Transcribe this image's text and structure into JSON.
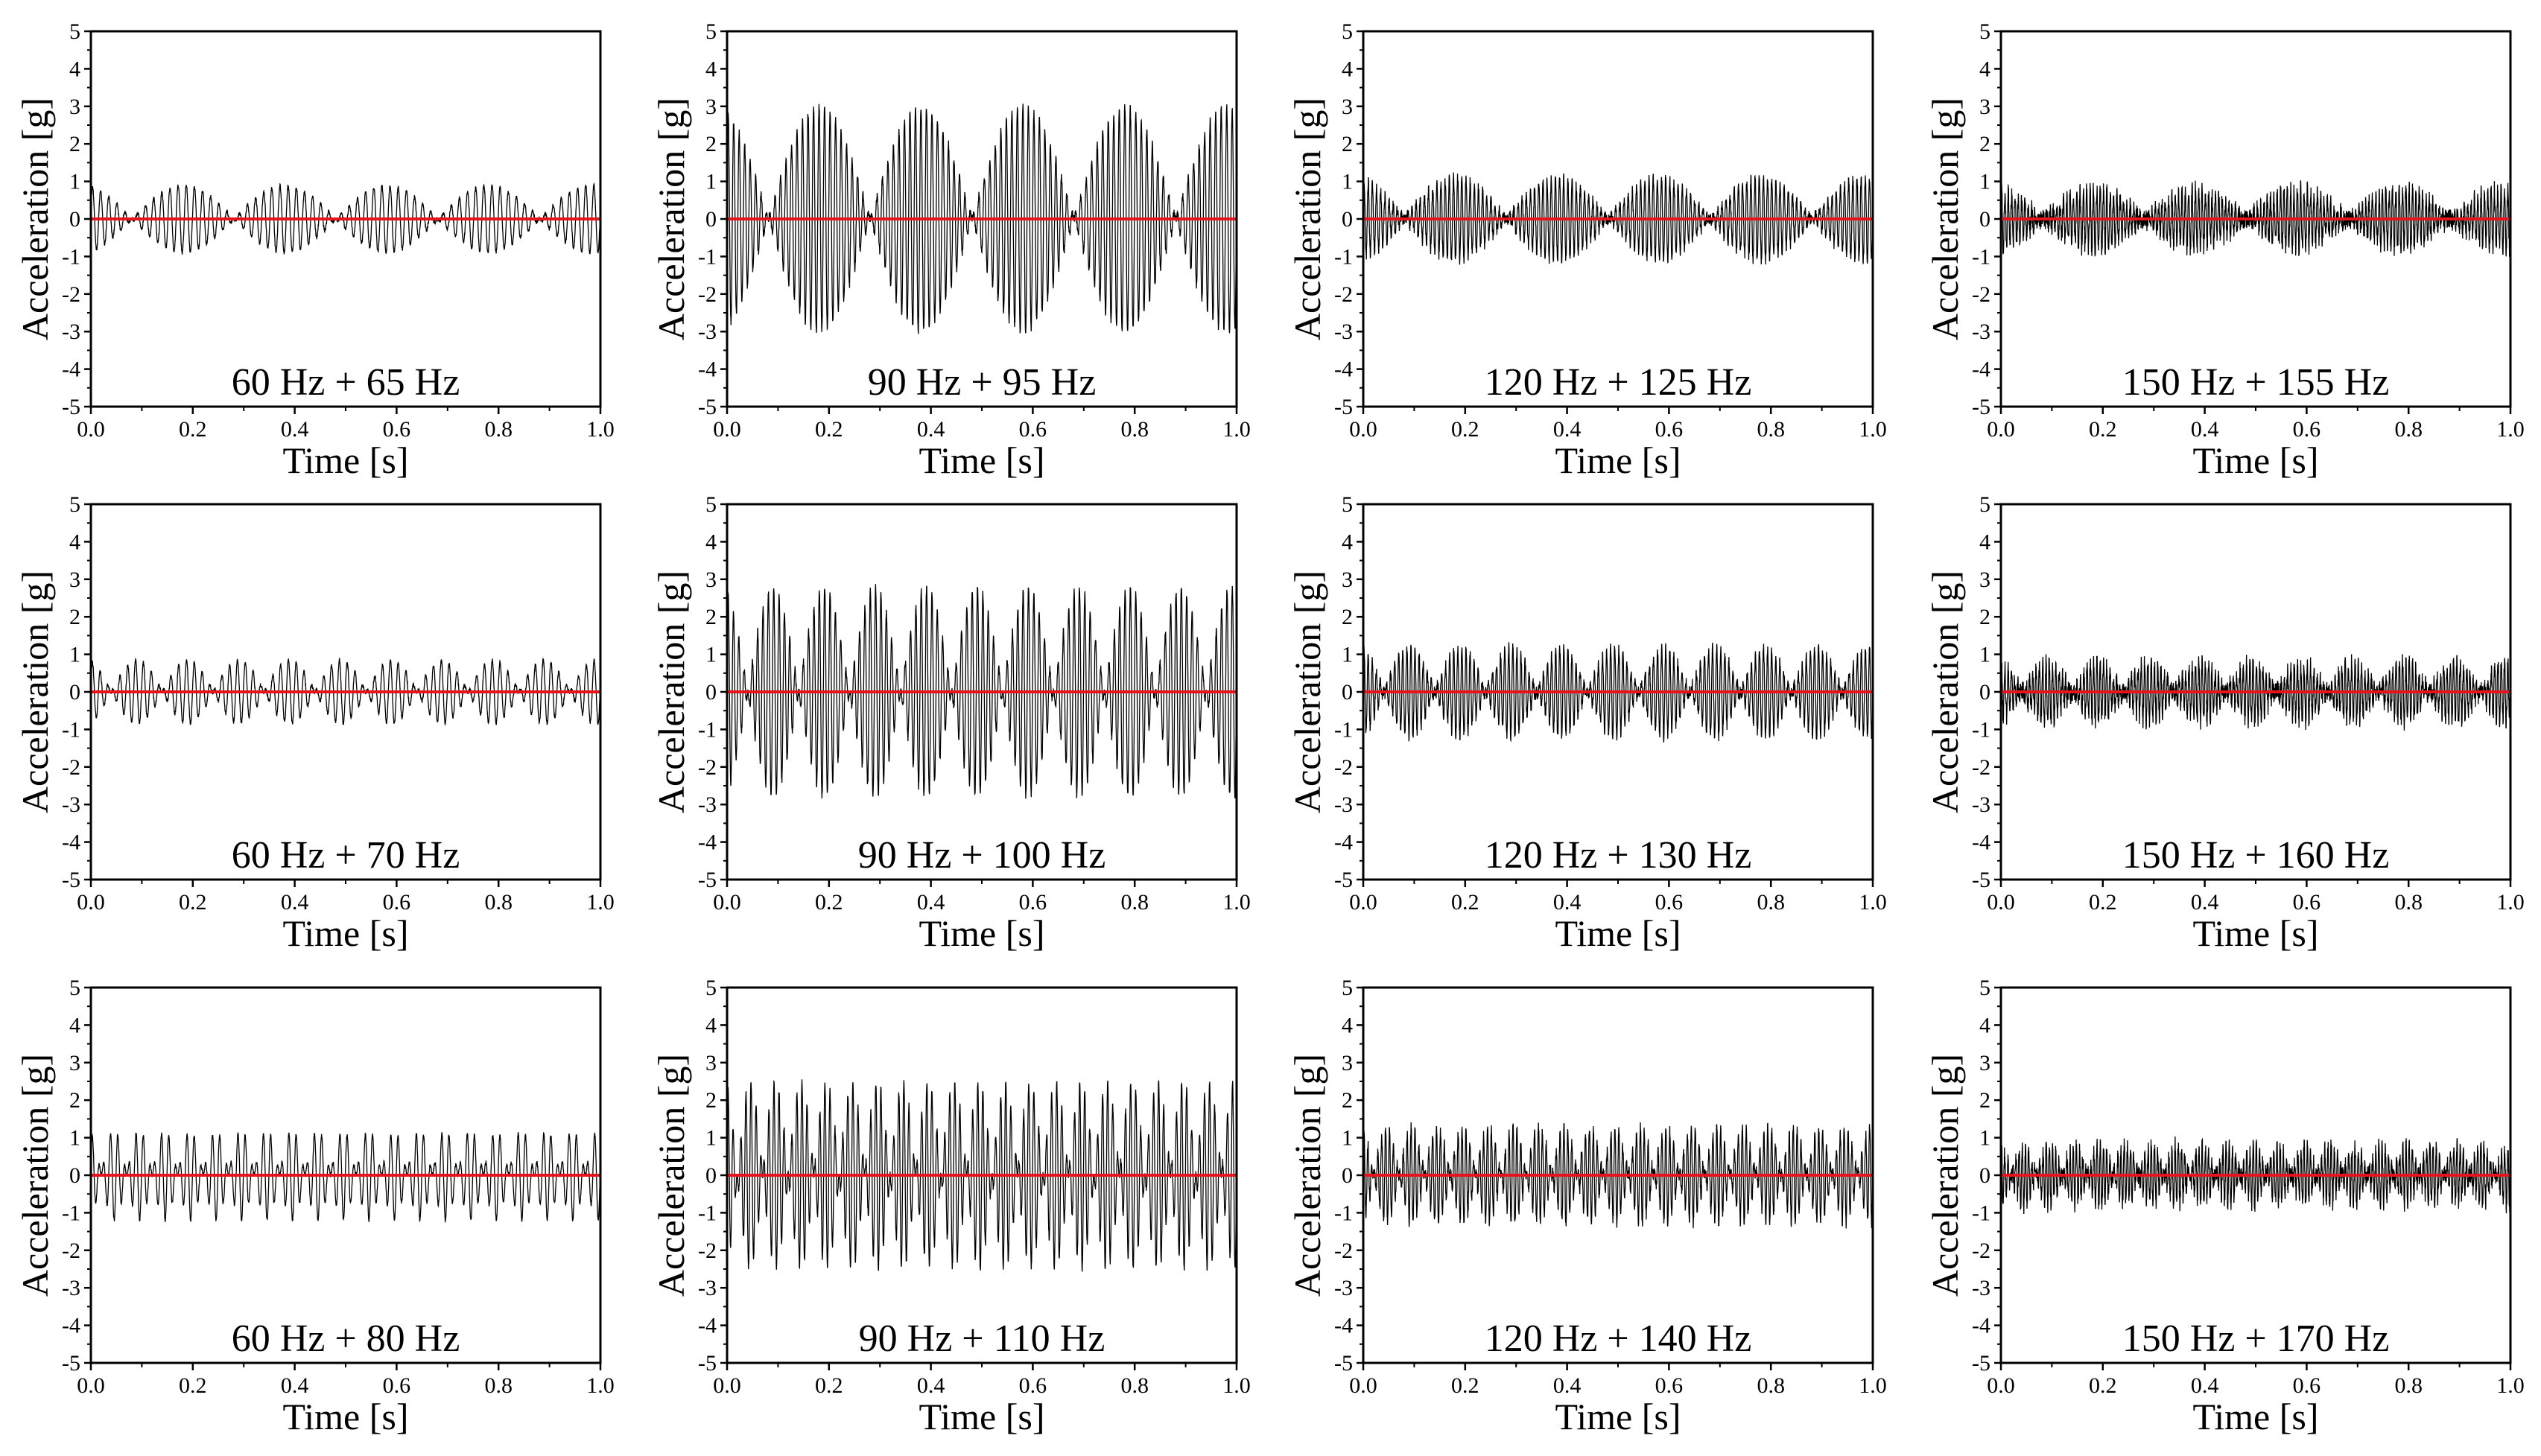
{
  "figure": {
    "xlabel": "Time [s]",
    "ylabel": "Acceleration [g]",
    "signal_color": "#000000",
    "zero_line_color": "#e8141b"
  },
  "chart_data": [
    {
      "type": "line",
      "annotation": "60 Hz + 65 Hz",
      "f1": 60,
      "f2": 65,
      "peak": 0.9,
      "noise": 0.05,
      "xlim": [
        0,
        1
      ],
      "ylim": [
        -5,
        5
      ],
      "xticks": [
        "0.0",
        "0.2",
        "0.4",
        "0.6",
        "0.8",
        "1.0"
      ],
      "yticks": [
        "5",
        "4",
        "3",
        "2",
        "1",
        "0",
        "-1",
        "-2",
        "-3",
        "-4",
        "-5"
      ],
      "xlabel": "Time [s]",
      "ylabel": "Acceleration [g]",
      "zero_line": 0
    },
    {
      "type": "line",
      "annotation": "90 Hz + 95 Hz",
      "f1": 90,
      "f2": 95,
      "peak": 3.0,
      "noise": 0.1,
      "xlim": [
        0,
        1
      ],
      "ylim": [
        -5,
        5
      ],
      "xticks": [
        "0.0",
        "0.2",
        "0.4",
        "0.6",
        "0.8",
        "1.0"
      ],
      "yticks": [
        "5",
        "4",
        "3",
        "2",
        "1",
        "0",
        "-1",
        "-2",
        "-3",
        "-4",
        "-5"
      ],
      "xlabel": "Time [s]",
      "ylabel": "Acceleration [g]",
      "zero_line": 0
    },
    {
      "type": "line",
      "annotation": "120 Hz + 125 Hz",
      "f1": 120,
      "f2": 125,
      "peak": 1.1,
      "noise": 0.15,
      "xlim": [
        0,
        1
      ],
      "ylim": [
        -5,
        5
      ],
      "xticks": [
        "0.0",
        "0.2",
        "0.4",
        "0.6",
        "0.8",
        "1.0"
      ],
      "yticks": [
        "5",
        "4",
        "3",
        "2",
        "1",
        "0",
        "-1",
        "-2",
        "-3",
        "-4",
        "-5"
      ],
      "xlabel": "Time [s]",
      "ylabel": "Acceleration [g]",
      "zero_line": 0
    },
    {
      "type": "line",
      "annotation": "150 Hz + 155 Hz",
      "f1": 150,
      "f2": 155,
      "peak": 0.8,
      "noise": 0.25,
      "xlim": [
        0,
        1
      ],
      "ylim": [
        -5,
        5
      ],
      "xticks": [
        "0.0",
        "0.2",
        "0.4",
        "0.6",
        "0.8",
        "1.0"
      ],
      "yticks": [
        "5",
        "4",
        "3",
        "2",
        "1",
        "0",
        "-1",
        "-2",
        "-3",
        "-4",
        "-5"
      ],
      "xlabel": "Time [s]",
      "ylabel": "Acceleration [g]",
      "zero_line": 0
    },
    {
      "type": "line",
      "annotation": "60 Hz + 70 Hz",
      "f1": 60,
      "f2": 70,
      "peak": 0.85,
      "noise": 0.05,
      "xlim": [
        0,
        1
      ],
      "ylim": [
        -5,
        5
      ],
      "xticks": [
        "0.0",
        "0.2",
        "0.4",
        "0.6",
        "0.8",
        "1.0"
      ],
      "yticks": [
        "5",
        "4",
        "3",
        "2",
        "1",
        "0",
        "-1",
        "-2",
        "-3",
        "-4",
        "-5"
      ],
      "xlabel": "Time [s]",
      "ylabel": "Acceleration [g]",
      "zero_line": 0
    },
    {
      "type": "line",
      "annotation": "90 Hz + 100 Hz",
      "f1": 90,
      "f2": 100,
      "peak": 2.8,
      "noise": 0.1,
      "xlim": [
        0,
        1
      ],
      "ylim": [
        -5,
        5
      ],
      "xticks": [
        "0.0",
        "0.2",
        "0.4",
        "0.6",
        "0.8",
        "1.0"
      ],
      "yticks": [
        "5",
        "4",
        "3",
        "2",
        "1",
        "0",
        "-1",
        "-2",
        "-3",
        "-4",
        "-5"
      ],
      "xlabel": "Time [s]",
      "ylabel": "Acceleration [g]",
      "zero_line": 0
    },
    {
      "type": "line",
      "annotation": "120 Hz + 130 Hz",
      "f1": 120,
      "f2": 130,
      "peak": 1.2,
      "noise": 0.15,
      "xlim": [
        0,
        1
      ],
      "ylim": [
        -5,
        5
      ],
      "xticks": [
        "0.0",
        "0.2",
        "0.4",
        "0.6",
        "0.8",
        "1.0"
      ],
      "yticks": [
        "5",
        "4",
        "3",
        "2",
        "1",
        "0",
        "-1",
        "-2",
        "-3",
        "-4",
        "-5"
      ],
      "xlabel": "Time [s]",
      "ylabel": "Acceleration [g]",
      "zero_line": 0
    },
    {
      "type": "line",
      "annotation": "150 Hz + 160 Hz",
      "f1": 150,
      "f2": 160,
      "peak": 0.8,
      "noise": 0.25,
      "xlim": [
        0,
        1
      ],
      "ylim": [
        -5,
        5
      ],
      "xticks": [
        "0.0",
        "0.2",
        "0.4",
        "0.6",
        "0.8",
        "1.0"
      ],
      "yticks": [
        "5",
        "4",
        "3",
        "2",
        "1",
        "0",
        "-1",
        "-2",
        "-3",
        "-4",
        "-5"
      ],
      "xlabel": "Time [s]",
      "ylabel": "Acceleration [g]",
      "zero_line": 0
    },
    {
      "type": "line",
      "annotation": "60 Hz + 80 Hz",
      "f1": 60,
      "f2": 80,
      "peak": 1.2,
      "noise": 0.05,
      "xlim": [
        0,
        1
      ],
      "ylim": [
        -5,
        5
      ],
      "xticks": [
        "0.0",
        "0.2",
        "0.4",
        "0.6",
        "0.8",
        "1.0"
      ],
      "yticks": [
        "5",
        "4",
        "3",
        "2",
        "1",
        "0",
        "-1",
        "-2",
        "-3",
        "-4",
        "-5"
      ],
      "xlabel": "Time [s]",
      "ylabel": "Acceleration [g]",
      "zero_line": 0
    },
    {
      "type": "line",
      "annotation": "90 Hz + 110 Hz",
      "f1": 90,
      "f2": 110,
      "peak": 2.5,
      "noise": 0.1,
      "xlim": [
        0,
        1
      ],
      "ylim": [
        -5,
        5
      ],
      "xticks": [
        "0.0",
        "0.2",
        "0.4",
        "0.6",
        "0.8",
        "1.0"
      ],
      "yticks": [
        "5",
        "4",
        "3",
        "2",
        "1",
        "0",
        "-1",
        "-2",
        "-3",
        "-4",
        "-5"
      ],
      "xlabel": "Time [s]",
      "ylabel": "Acceleration [g]",
      "zero_line": 0
    },
    {
      "type": "line",
      "annotation": "120 Hz + 140 Hz",
      "f1": 120,
      "f2": 140,
      "peak": 1.3,
      "noise": 0.15,
      "xlim": [
        0,
        1
      ],
      "ylim": [
        -5,
        5
      ],
      "xticks": [
        "0.0",
        "0.2",
        "0.4",
        "0.6",
        "0.8",
        "1.0"
      ],
      "yticks": [
        "5",
        "4",
        "3",
        "2",
        "1",
        "0",
        "-1",
        "-2",
        "-3",
        "-4",
        "-5"
      ],
      "xlabel": "Time [s]",
      "ylabel": "Acceleration [g]",
      "zero_line": 0
    },
    {
      "type": "line",
      "annotation": "150 Hz + 170 Hz",
      "f1": 150,
      "f2": 170,
      "peak": 0.8,
      "noise": 0.25,
      "xlim": [
        0,
        1
      ],
      "ylim": [
        -5,
        5
      ],
      "xticks": [
        "0.0",
        "0.2",
        "0.4",
        "0.6",
        "0.8",
        "1.0"
      ],
      "yticks": [
        "5",
        "4",
        "3",
        "2",
        "1",
        "0",
        "-1",
        "-2",
        "-3",
        "-4",
        "-5"
      ],
      "xlabel": "Time [s]",
      "ylabel": "Acceleration [g]",
      "zero_line": 0
    }
  ]
}
